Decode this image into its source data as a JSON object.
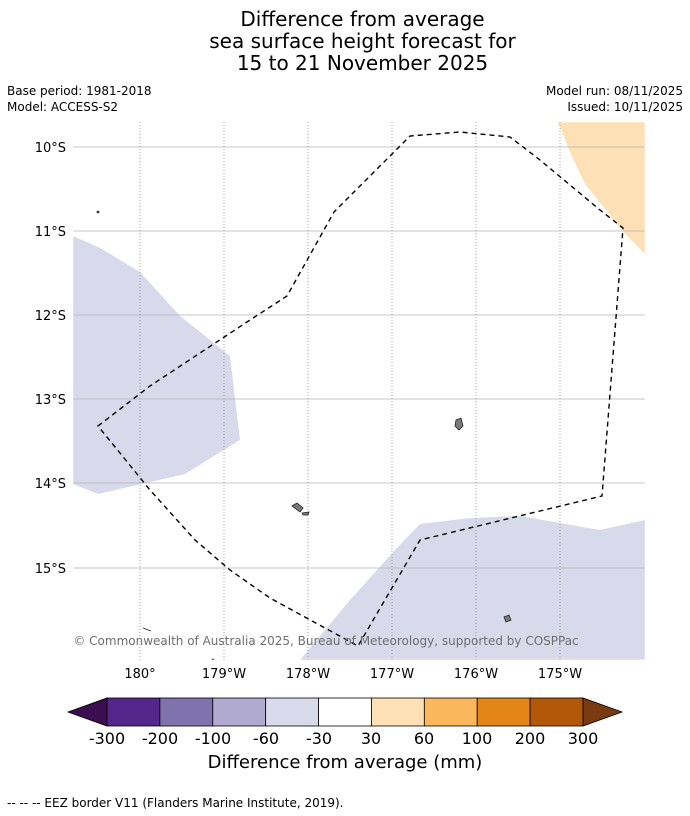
{
  "title": {
    "line1": "Difference from average",
    "line2": "sea surface height forecast for",
    "line3": "15 to 21 November 2025"
  },
  "meta": {
    "base_period": "Base period: 1981-2018",
    "model": "Model: ACCESS-S2",
    "model_run": "Model run: 08/11/2025",
    "issued": "Issued: 10/11/2025"
  },
  "map": {
    "lat_labels": [
      "10°S",
      "11°S",
      "12°S",
      "13°S",
      "14°S",
      "15°S"
    ],
    "lon_labels": [
      "180°",
      "179°W",
      "178°W",
      "177°W",
      "176°W",
      "175°W"
    ],
    "copyright": "© Commonwealth of Australia 2025, Bureau of Meteorology, supported by COSPPac"
  },
  "colorbar": {
    "title": "Difference from average (mm)",
    "tick_labels": [
      "-300",
      "-200",
      "-100",
      "-60",
      "-30",
      "30",
      "60",
      "100",
      "200",
      "300"
    ],
    "low_extend_color": "#3c0d4f",
    "high_extend_color": "#7a3a10",
    "bins": [
      {
        "color": "#54258b"
      },
      {
        "color": "#8072ac"
      },
      {
        "color": "#b0aad1"
      },
      {
        "color": "#d8d9ea"
      },
      {
        "color": "#ffffff"
      },
      {
        "color": "#fee0b6"
      },
      {
        "color": "#fab75b"
      },
      {
        "color": "#e38617"
      },
      {
        "color": "#b35806"
      }
    ]
  },
  "footnote": "--  --  -- EEZ border V11 (Flanders Marine Institute, 2019)."
}
